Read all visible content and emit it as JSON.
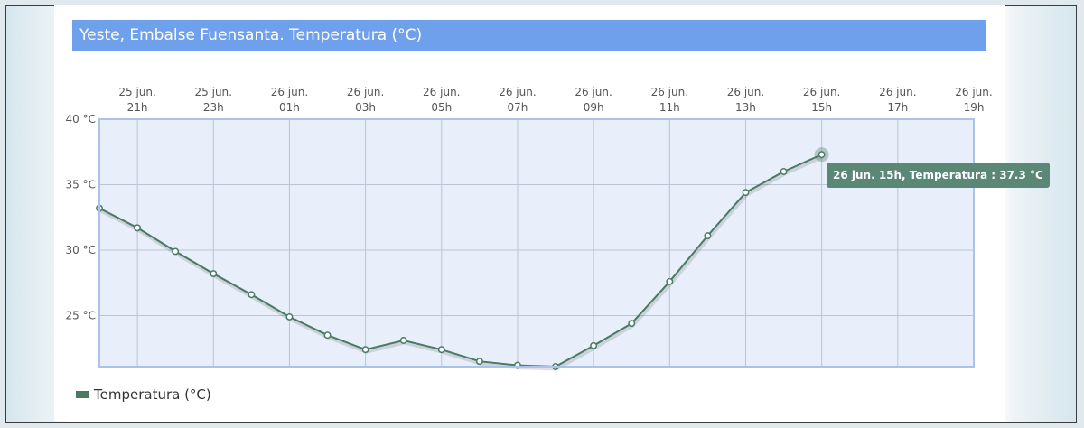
{
  "chart_data": {
    "type": "line",
    "title": "Yeste, Embalse Fuensanta. Temperatura (°C)",
    "ylabel": "",
    "xlabel": "",
    "ylim": [
      21.1,
      40
    ],
    "y_ticks": [
      "40 °C",
      "35 °C",
      "30 °C",
      "25 °C"
    ],
    "y_tick_values": [
      40,
      35,
      30,
      25
    ],
    "x_tick_labels": [
      [
        "25 jun.",
        "21h"
      ],
      [
        "25 jun.",
        "23h"
      ],
      [
        "26 jun.",
        "01h"
      ],
      [
        "26 jun.",
        "03h"
      ],
      [
        "26 jun.",
        "05h"
      ],
      [
        "26 jun.",
        "07h"
      ],
      [
        "26 jun.",
        "09h"
      ],
      [
        "26 jun.",
        "11h"
      ],
      [
        "26 jun.",
        "13h"
      ],
      [
        "26 jun.",
        "15h"
      ],
      [
        "26 jun.",
        "17h"
      ],
      [
        "26 jun.",
        "19h"
      ]
    ],
    "x_range_hours": [
      "25 jun. 20h",
      "26 jun. 19h"
    ],
    "series": [
      {
        "name": "Temperatura (°C)",
        "color": "#4a7a64",
        "x": [
          "25 jun. 20h",
          "25 jun. 21h",
          "25 jun. 22h",
          "25 jun. 23h",
          "26 jun. 00h",
          "26 jun. 01h",
          "26 jun. 02h",
          "26 jun. 03h",
          "26 jun. 04h",
          "26 jun. 05h",
          "26 jun. 06h",
          "26 jun. 07h",
          "26 jun. 08h",
          "26 jun. 09h",
          "26 jun. 10h",
          "26 jun. 11h",
          "26 jun. 12h",
          "26 jun. 13h",
          "26 jun. 14h",
          "26 jun. 15h"
        ],
        "values": [
          33.2,
          31.7,
          29.9,
          28.2,
          26.6,
          24.9,
          23.5,
          22.4,
          23.1,
          22.4,
          21.5,
          21.2,
          21.1,
          22.7,
          24.4,
          27.6,
          31.1,
          34.4,
          36.0,
          37.3
        ]
      }
    ],
    "grid": true,
    "legend_position": "bottom-left",
    "plot_background": "#e8effb",
    "plot_border": "#a9c4e6"
  },
  "legend": {
    "label": "Temperatura (°C)"
  },
  "tooltip": {
    "text": "26 jun. 15h, Temperatura : 37.3 °C",
    "point_index": 19
  }
}
